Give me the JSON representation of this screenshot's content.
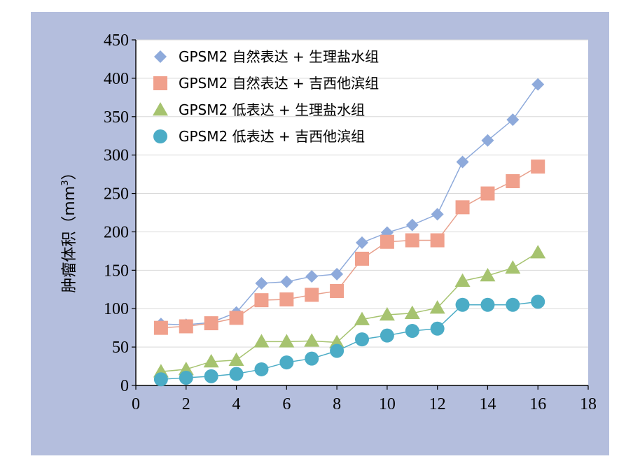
{
  "chart_data": {
    "type": "line",
    "ylabel": "肿瘤体积",
    "yunit": "mm",
    "yunit_sup": "3",
    "xlim": [
      0,
      18
    ],
    "ylim": [
      0,
      450
    ],
    "xticks": [
      0,
      2,
      4,
      6,
      8,
      10,
      12,
      14,
      16,
      18
    ],
    "yticks": [
      0,
      50,
      100,
      150,
      200,
      250,
      300,
      350,
      400,
      450
    ],
    "grid": true,
    "legend_position": "top-left",
    "x": [
      1,
      2,
      3,
      4,
      5,
      6,
      7,
      8,
      9,
      10,
      11,
      12,
      13,
      14,
      15,
      16
    ],
    "series": [
      {
        "name": "GPSM2 自然表达 + 生理盐水组",
        "marker": "diamond",
        "color": "#8eaadb",
        "line_color": "#8eaadb",
        "values": [
          80,
          79,
          82,
          95,
          133,
          135,
          142,
          145,
          186,
          199,
          209,
          223,
          291,
          319,
          346,
          392
        ]
      },
      {
        "name": "GPSM2 自然表达 + 吉西他滨组",
        "marker": "square",
        "color": "#f0a08c",
        "line_color": "#e8a08c",
        "values": [
          75,
          77,
          81,
          88,
          111,
          112,
          118,
          123,
          165,
          187,
          189,
          189,
          232,
          250,
          266,
          285
        ]
      },
      {
        "name": "GPSM2 低表达 + 生理盐水组",
        "marker": "triangle",
        "color": "#a6c36f",
        "line_color": "#a6c36f",
        "values": [
          18,
          21,
          31,
          33,
          57,
          57,
          58,
          56,
          86,
          92,
          94,
          101,
          136,
          143,
          153,
          173
        ]
      },
      {
        "name": "GPSM2 低表达 + 吉西他滨组",
        "marker": "circle",
        "color": "#4bacc6",
        "line_color": "#4bacc6",
        "values": [
          8,
          10,
          12,
          15,
          21,
          30,
          35,
          45,
          60,
          65,
          71,
          74,
          105,
          105,
          105,
          109
        ]
      }
    ]
  }
}
